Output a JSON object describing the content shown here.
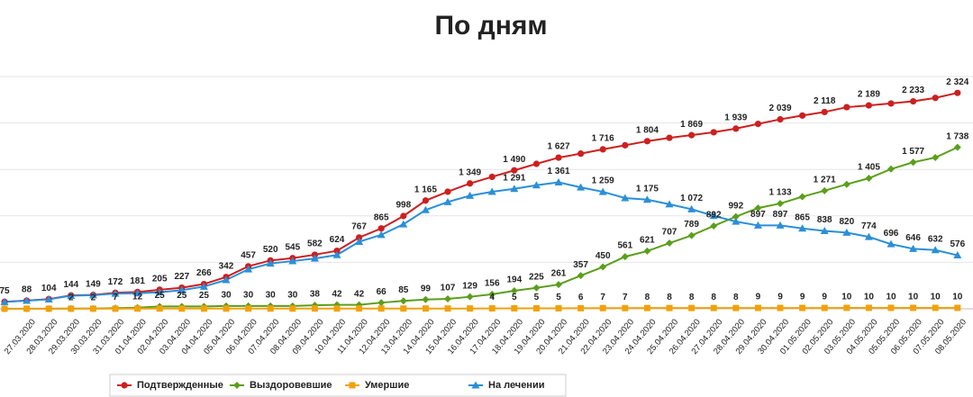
{
  "chart_data": {
    "type": "line",
    "title": "По дням",
    "categories": [
      null,
      "27.03.2020",
      "28.03.2020",
      "29.03.2020",
      "30.03.2020",
      "31.03.2020",
      "01.04.2020",
      "02.04.2020",
      "03.04.2020",
      "04.04.2020",
      "05.04.2020",
      "06.04.2020",
      "07.04.2020",
      "08.04.2020",
      "09.04.2020",
      "10.04.2020",
      "11.04.2020",
      "12.04.2020",
      "13.04.2020",
      "14.04.2020",
      "15.04.2020",
      "16.04.2020",
      "17.04.2020",
      "18.04.2020",
      "19.04.2020",
      "20.04.2020",
      "21.04.2020",
      "22.04.2020",
      "23.04.2020",
      "24.04.2020",
      "25.04.2020",
      "26.04.2020",
      "27.04.2020",
      "28.04.2020",
      "29.04.2020",
      "30.04.2020",
      "01.05.2020",
      "02.05.2020",
      "03.05.2020",
      "04.05.2020",
      "05.05.2020",
      "06.05.2020",
      "07.05.2020",
      "08.05.2020"
    ],
    "ylim": [
      0,
      2500
    ],
    "yticks": [
      0,
      500,
      1000,
      1500,
      2000,
      2500
    ],
    "grid": true,
    "legend": "bottom",
    "series": [
      {
        "name": "Подтвержденные",
        "color": "#cc2020",
        "marker": "circle",
        "values": [
          75,
          88,
          104,
          144,
          149,
          172,
          181,
          205,
          227,
          266,
          342,
          457,
          520,
          545,
          582,
          624,
          767,
          865,
          998,
          1165,
          1260,
          1349,
          1420,
          1490,
          1560,
          1627,
          1670,
          1716,
          1760,
          1804,
          1840,
          1869,
          1900,
          1939,
          1990,
          2039,
          2080,
          2118,
          2170,
          2189,
          2210,
          2233,
          2270,
          2324
        ],
        "value_labels": [
          "75",
          "88",
          "104",
          "144",
          "149",
          "172",
          "181",
          "205",
          "227",
          "266",
          "342",
          "457",
          "520",
          "545",
          "582",
          "624",
          "767",
          "865",
          "998",
          "1 165",
          null,
          "1 349",
          null,
          "1 490",
          null,
          "1 627",
          null,
          "1 716",
          null,
          "1 804",
          null,
          "1 869",
          null,
          "1 939",
          null,
          "2 039",
          null,
          "2 118",
          null,
          "2 189",
          null,
          "2 233",
          null,
          "2 324"
        ]
      },
      {
        "name": "Выздоровевшие",
        "color": "#5b9e1c",
        "marker": "diamond",
        "values": [
          0,
          0,
          1,
          2,
          2,
          7,
          12,
          25,
          25,
          25,
          30,
          30,
          30,
          30,
          38,
          42,
          42,
          66,
          85,
          99,
          107,
          129,
          156,
          194,
          225,
          261,
          357,
          450,
          561,
          621,
          707,
          789,
          892,
          992,
          1084,
          1133,
          1206,
          1271,
          1340,
          1405,
          1504,
          1577,
          1628,
          1738
        ],
        "value_labels": [
          null,
          null,
          null,
          "2",
          "2",
          "7",
          "12",
          "25",
          "25",
          "25",
          "30",
          "30",
          "30",
          "30",
          "38",
          "42",
          "42",
          "66",
          "85",
          "99",
          "107",
          "129",
          "156",
          "194",
          "225",
          "261",
          "357",
          "450",
          "561",
          "621",
          "707",
          "789",
          "892",
          "992",
          null,
          "1 133",
          null,
          "1 271",
          null,
          "1 405",
          null,
          "1 577",
          null,
          "1 738"
        ]
      },
      {
        "name": "Умершие",
        "color": "#f0a20c",
        "marker": "square",
        "values": [
          1,
          1,
          1,
          1,
          1,
          1,
          2,
          2,
          2,
          2,
          2,
          2,
          2,
          2,
          3,
          3,
          3,
          3,
          3,
          3,
          3,
          3,
          4,
          5,
          5,
          5,
          6,
          7,
          7,
          8,
          8,
          8,
          8,
          8,
          9,
          9,
          9,
          9,
          10,
          10,
          10,
          10,
          10,
          10
        ],
        "value_labels": [
          null,
          null,
          null,
          null,
          null,
          null,
          null,
          null,
          null,
          null,
          null,
          null,
          null,
          null,
          null,
          null,
          null,
          null,
          null,
          null,
          null,
          null,
          "4",
          "5",
          "5",
          "5",
          "6",
          "7",
          "7",
          "8",
          "8",
          "8",
          "8",
          "8",
          "9",
          "9",
          "9",
          "9",
          "10",
          "10",
          "10",
          "10",
          "10",
          "10"
        ]
      },
      {
        "name": "На лечении",
        "color": "#2b8fd8",
        "marker": "triangle",
        "values": [
          74,
          87,
          102,
          141,
          146,
          164,
          167,
          178,
          200,
          239,
          310,
          425,
          488,
          513,
          541,
          579,
          722,
          796,
          910,
          1063,
          1150,
          1217,
          1260,
          1291,
          1330,
          1361,
          1307,
          1259,
          1192,
          1175,
          1125,
          1072,
          1000,
          939,
          897,
          897,
          865,
          838,
          820,
          774,
          696,
          646,
          632,
          576
        ],
        "value_labels": [
          null,
          null,
          null,
          null,
          null,
          null,
          null,
          null,
          null,
          null,
          null,
          null,
          null,
          null,
          null,
          null,
          null,
          null,
          null,
          null,
          null,
          null,
          null,
          "1 291",
          null,
          "1 361",
          null,
          "1 259",
          null,
          "1 175",
          null,
          "1 072",
          null,
          null,
          "897",
          "897",
          "865",
          "838",
          "820",
          "774",
          "696",
          "646",
          "632",
          "576"
        ]
      }
    ]
  }
}
